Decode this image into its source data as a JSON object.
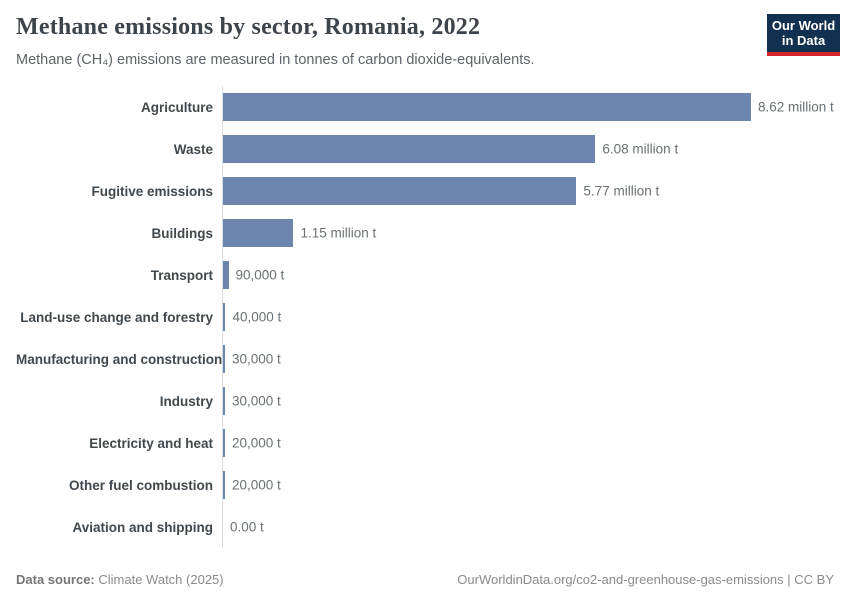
{
  "header": {
    "title": "Methane emissions by sector, Romania, 2022",
    "subtitle": "Methane (CH₄) emissions are measured in tonnes of carbon dioxide-equivalents."
  },
  "logo": {
    "line1": "Our World",
    "line2": "in Data"
  },
  "chart_data": {
    "type": "bar",
    "orientation": "horizontal",
    "title": "Methane emissions by sector, Romania, 2022",
    "xlabel": "",
    "ylabel": "",
    "unit": "t (CO2-equivalents)",
    "grid": false,
    "legend": false,
    "xlim": [
      0,
      8620000
    ],
    "categories": [
      "Agriculture",
      "Waste",
      "Fugitive emissions",
      "Buildings",
      "Transport",
      "Land-use change and forestry",
      "Manufacturing and construction",
      "Industry",
      "Electricity and heat",
      "Other fuel combustion",
      "Aviation and shipping"
    ],
    "values": [
      8620000,
      6080000,
      5770000,
      1150000,
      90000,
      40000,
      30000,
      30000,
      20000,
      20000,
      0
    ],
    "value_labels": [
      "8.62 million t",
      "6.08 million t",
      "5.77 million t",
      "1.15 million t",
      "90,000 t",
      "40,000 t",
      "30,000 t",
      "30,000 t",
      "20,000 t",
      "20,000 t",
      "0.00 t"
    ],
    "bar_color": "#6d86af"
  },
  "footer": {
    "source_label": "Data source:",
    "source_value": "Climate Watch (2025)",
    "right": "OurWorldinData.org/co2-and-greenhouse-gas-emissions | CC BY"
  },
  "colors": {
    "bar": "#6d86af",
    "logo_bg": "#12304f",
    "logo_accent": "#d8232a",
    "axis_line": "#dcdcdc"
  }
}
